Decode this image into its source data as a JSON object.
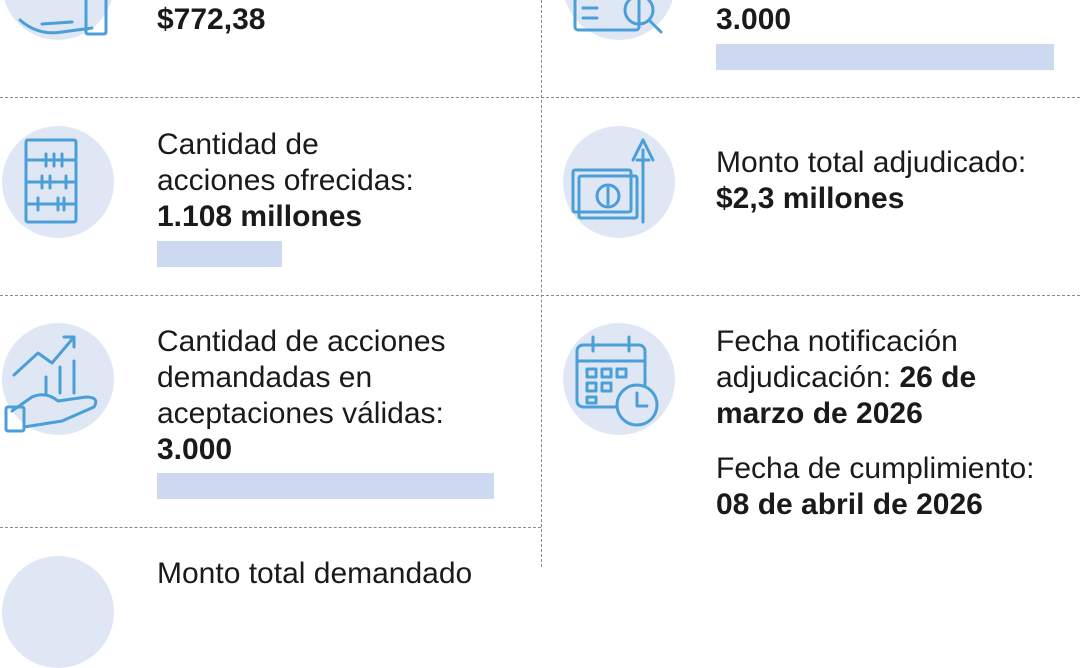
{
  "colors": {
    "icon_stroke": "#4a9fd8",
    "circle_fill": "#dfe7f5",
    "bar_fill": "#ccd9f0",
    "divider": "#8a8a8a"
  },
  "top_left": {
    "value": "$772,38",
    "icon": "hand-icon"
  },
  "top_right": {
    "value": "3.000",
    "icon": "search-check-icon"
  },
  "offered": {
    "label_l1": "Cantidad de",
    "label_l2": "acciones ofrecidas:",
    "value": "1.108 millones",
    "icon": "abacus-icon"
  },
  "awarded": {
    "label": "Monto total adjudicado:",
    "value": "$2,3 millones",
    "icon": "money-arrow-icon"
  },
  "demanded": {
    "label_l1": "Cantidad de acciones",
    "label_l2": "demandadas en",
    "label_l3": "aceptaciones válidas:",
    "value": "3.000",
    "icon": "growth-chart-hand-icon"
  },
  "notification": {
    "label_l1": "Fecha notificación",
    "label_l2": "adjudicación:",
    "value_l2": "26 de",
    "value_l3": "marzo de 2026",
    "icon": "calendar-clock-icon"
  },
  "settlement": {
    "label": "Fecha de cumplimiento:",
    "value": "08 de abril de 2026"
  },
  "bottom_left": {
    "partial_label": "Monto total demandado"
  }
}
